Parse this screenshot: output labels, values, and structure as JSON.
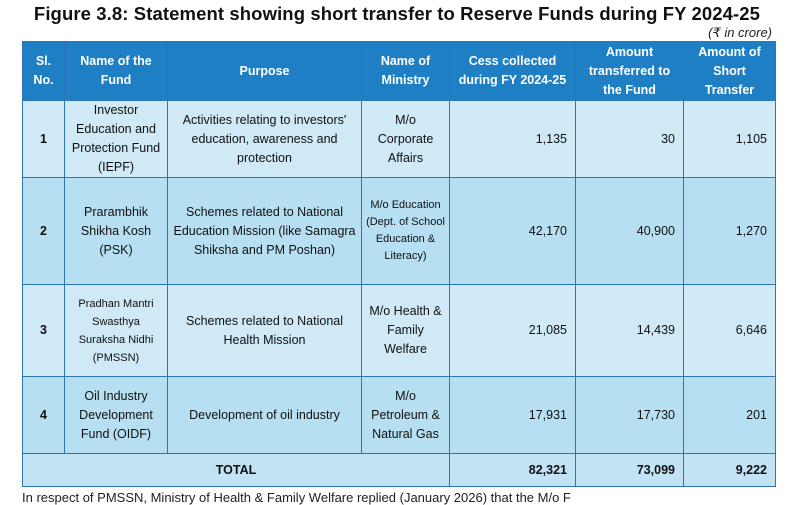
{
  "title": "Figure 3.8: Statement showing short transfer to Reserve Funds during FY 2024-25",
  "unit_note": "(₹ in crore)",
  "headers": {
    "sl": "Sl. No.",
    "fund": "Name of the Fund",
    "purpose": "Purpose",
    "ministry": "Name of Ministry",
    "cess": "Cess collected during FY 2024-25",
    "transferred": "Amount transferred to the Fund",
    "short": "Amount of Short Transfer"
  },
  "rows": [
    {
      "sl": "1",
      "fund": "Investor Education and Protection Fund (IEPF)",
      "purpose": "Activities relating to investors' education, awareness and protection",
      "ministry": "M/o Corporate Affairs",
      "cess": "1,135",
      "transferred": "30",
      "short": "1,105"
    },
    {
      "sl": "2",
      "fund": "Prarambhik Shikha Kosh (PSK)",
      "purpose": "Schemes related to National Education Mission (like Samagra Shiksha and PM Poshan)",
      "ministry": "M/o Education (Dept. of School Education & Literacy)",
      "cess": "42,170",
      "transferred": "40,900",
      "short": "1,270"
    },
    {
      "sl": "3",
      "fund": "Pradhan Mantri Swasthya Suraksha Nidhi (PMSSN)",
      "purpose": "Schemes related to National Health Mission",
      "ministry": "M/o Health & Family Welfare",
      "cess": "21,085",
      "transferred": "14,439",
      "short": "6,646"
    },
    {
      "sl": "4",
      "fund": "Oil Industry Development Fund (OIDF)",
      "purpose": "Development of oil industry",
      "ministry": "M/o Petroleum & Natural Gas",
      "cess": "17,931",
      "transferred": "17,730",
      "short": "201"
    }
  ],
  "total": {
    "label": "TOTAL",
    "cess": "82,321",
    "transferred": "73,099",
    "short": "9,222"
  },
  "footnote": "In respect of PMSSN, Ministry of Health & Family Welfare replied (January 2026) that the M/o F"
}
